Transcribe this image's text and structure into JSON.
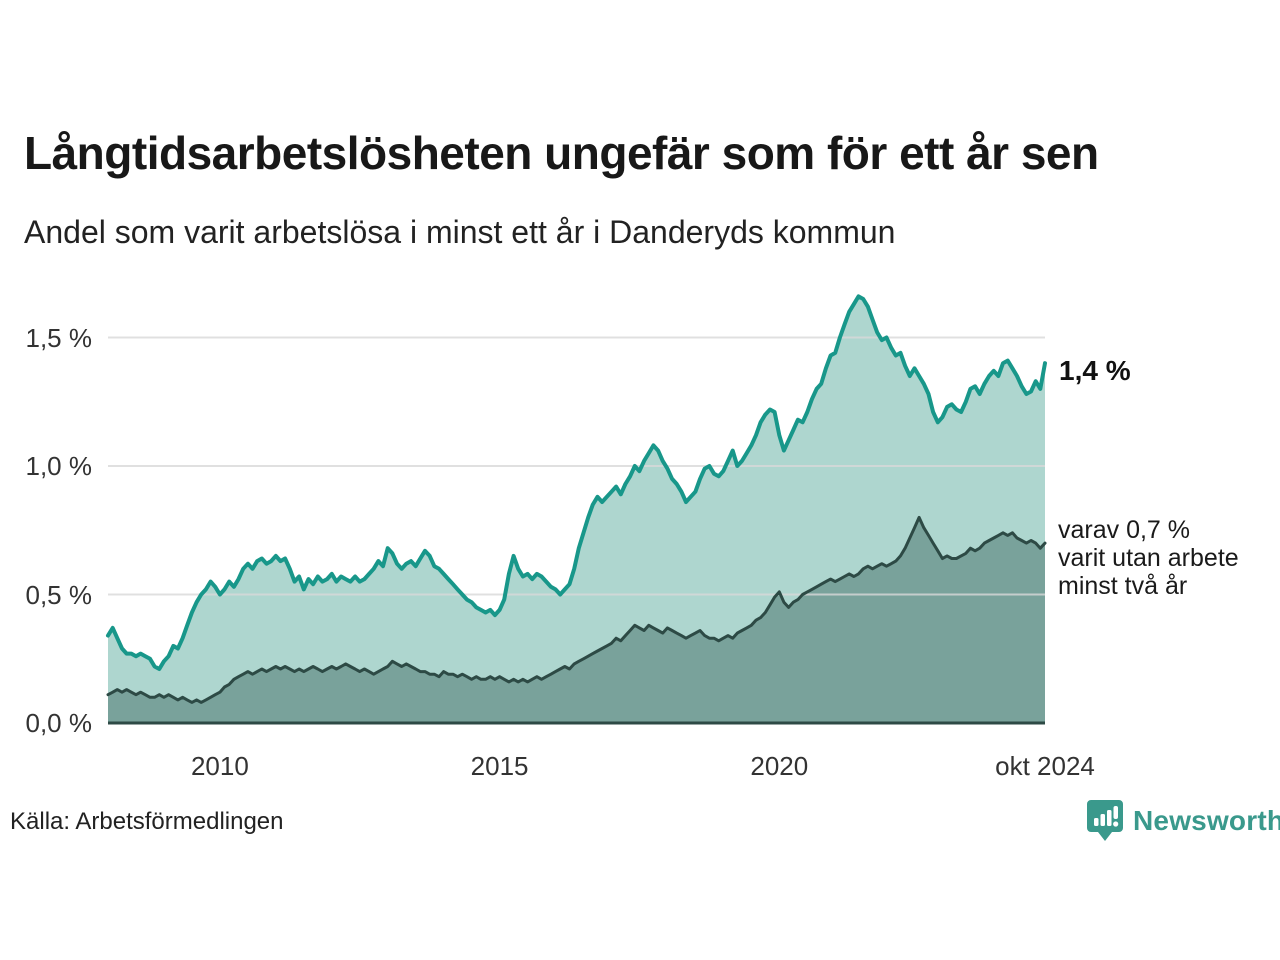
{
  "header": {
    "title": "Långtidsarbetslösheten ungefär som för ett år sen",
    "subtitle": "Andel som varit arbetslösa i minst ett år i Danderyds kommun"
  },
  "annotations": {
    "latest_value": "1,4 %",
    "varav_lines": [
      "varav 0,7 %",
      "varit utan arbete",
      "minst två år"
    ]
  },
  "footer": {
    "source": "Källa: Arbetsförmedlingen",
    "brand": "Newsworthy"
  },
  "colors": {
    "line_one_year": "#18978a",
    "fill_one_year": "#aed6cf",
    "line_two_years": "#2d4a45",
    "fill_two_years": "#79a29b",
    "gridline": "#d8d8d8",
    "axis_text": "#333333",
    "brand_teal": "#3a998c"
  },
  "chart_data": {
    "type": "area",
    "title": "Långtidsarbetslösheten ungefär som för ett år sen",
    "subtitle": "Andel som varit arbetslösa i minst ett år i Danderyds kommun",
    "unit": "%",
    "frequency": "monthly",
    "x_start": "2008-01",
    "x_end": "2024-10",
    "ylim": [
      0,
      1.69
    ],
    "grid": true,
    "legend_position": "right-annotations",
    "y_ticks": [
      {
        "label": "0,0 %",
        "value": 0.0
      },
      {
        "label": "0,5 %",
        "value": 0.5
      },
      {
        "label": "1,0 %",
        "value": 1.0
      },
      {
        "label": "1,5 %",
        "value": 1.5
      }
    ],
    "x_ticks": [
      {
        "label": "2010",
        "month_index": 24
      },
      {
        "label": "2015",
        "month_index": 84
      },
      {
        "label": "2020",
        "month_index": 144
      },
      {
        "label": "okt 2024",
        "month_index": 201
      }
    ],
    "series": [
      {
        "name": "Andel som varit arbetslösa i minst ett år",
        "latest_label": "1,4 %",
        "stroke": "#18978a",
        "fill": "#aed6cf",
        "values": [
          0.34,
          0.37,
          0.33,
          0.29,
          0.27,
          0.27,
          0.26,
          0.27,
          0.26,
          0.25,
          0.22,
          0.21,
          0.24,
          0.26,
          0.3,
          0.29,
          0.33,
          0.38,
          0.43,
          0.47,
          0.5,
          0.52,
          0.55,
          0.53,
          0.5,
          0.52,
          0.55,
          0.53,
          0.56,
          0.6,
          0.62,
          0.6,
          0.63,
          0.64,
          0.62,
          0.63,
          0.65,
          0.63,
          0.64,
          0.6,
          0.55,
          0.57,
          0.52,
          0.56,
          0.54,
          0.57,
          0.55,
          0.56,
          0.58,
          0.55,
          0.57,
          0.56,
          0.55,
          0.57,
          0.55,
          0.56,
          0.58,
          0.6,
          0.63,
          0.61,
          0.68,
          0.66,
          0.62,
          0.6,
          0.62,
          0.63,
          0.61,
          0.64,
          0.67,
          0.65,
          0.61,
          0.6,
          0.58,
          0.56,
          0.54,
          0.52,
          0.5,
          0.48,
          0.47,
          0.45,
          0.44,
          0.43,
          0.44,
          0.42,
          0.44,
          0.48,
          0.58,
          0.65,
          0.6,
          0.57,
          0.58,
          0.56,
          0.58,
          0.57,
          0.55,
          0.53,
          0.52,
          0.5,
          0.52,
          0.54,
          0.6,
          0.68,
          0.74,
          0.8,
          0.85,
          0.88,
          0.86,
          0.88,
          0.9,
          0.92,
          0.89,
          0.93,
          0.96,
          1.0,
          0.98,
          1.02,
          1.05,
          1.08,
          1.06,
          1.02,
          0.99,
          0.95,
          0.93,
          0.9,
          0.86,
          0.88,
          0.9,
          0.95,
          0.99,
          1.0,
          0.97,
          0.96,
          0.98,
          1.02,
          1.06,
          1.0,
          1.02,
          1.05,
          1.08,
          1.12,
          1.17,
          1.2,
          1.22,
          1.21,
          1.12,
          1.06,
          1.1,
          1.14,
          1.18,
          1.17,
          1.21,
          1.26,
          1.3,
          1.32,
          1.38,
          1.43,
          1.44,
          1.5,
          1.55,
          1.6,
          1.63,
          1.66,
          1.65,
          1.62,
          1.57,
          1.52,
          1.49,
          1.5,
          1.46,
          1.43,
          1.44,
          1.39,
          1.35,
          1.38,
          1.35,
          1.32,
          1.28,
          1.21,
          1.17,
          1.19,
          1.23,
          1.24,
          1.22,
          1.21,
          1.25,
          1.3,
          1.31,
          1.28,
          1.32,
          1.35,
          1.37,
          1.35,
          1.4,
          1.41,
          1.38,
          1.35,
          1.31,
          1.28,
          1.29,
          1.33,
          1.3,
          1.4
        ]
      },
      {
        "name": "varav utan arbete minst två år",
        "latest_label": "0,7 %",
        "stroke": "#2d4a45",
        "fill": "#79a29b",
        "values": [
          0.11,
          0.12,
          0.13,
          0.12,
          0.13,
          0.12,
          0.11,
          0.12,
          0.11,
          0.1,
          0.1,
          0.11,
          0.1,
          0.11,
          0.1,
          0.09,
          0.1,
          0.09,
          0.08,
          0.09,
          0.08,
          0.09,
          0.1,
          0.11,
          0.12,
          0.14,
          0.15,
          0.17,
          0.18,
          0.19,
          0.2,
          0.19,
          0.2,
          0.21,
          0.2,
          0.21,
          0.22,
          0.21,
          0.22,
          0.21,
          0.2,
          0.21,
          0.2,
          0.21,
          0.22,
          0.21,
          0.2,
          0.21,
          0.22,
          0.21,
          0.22,
          0.23,
          0.22,
          0.21,
          0.2,
          0.21,
          0.2,
          0.19,
          0.2,
          0.21,
          0.22,
          0.24,
          0.23,
          0.22,
          0.23,
          0.22,
          0.21,
          0.2,
          0.2,
          0.19,
          0.19,
          0.18,
          0.2,
          0.19,
          0.19,
          0.18,
          0.19,
          0.18,
          0.17,
          0.18,
          0.17,
          0.17,
          0.18,
          0.17,
          0.18,
          0.17,
          0.16,
          0.17,
          0.16,
          0.17,
          0.16,
          0.17,
          0.18,
          0.17,
          0.18,
          0.19,
          0.2,
          0.21,
          0.22,
          0.21,
          0.23,
          0.24,
          0.25,
          0.26,
          0.27,
          0.28,
          0.29,
          0.3,
          0.31,
          0.33,
          0.32,
          0.34,
          0.36,
          0.38,
          0.37,
          0.36,
          0.38,
          0.37,
          0.36,
          0.35,
          0.37,
          0.36,
          0.35,
          0.34,
          0.33,
          0.34,
          0.35,
          0.36,
          0.34,
          0.33,
          0.33,
          0.32,
          0.33,
          0.34,
          0.33,
          0.35,
          0.36,
          0.37,
          0.38,
          0.4,
          0.41,
          0.43,
          0.46,
          0.49,
          0.51,
          0.47,
          0.45,
          0.47,
          0.48,
          0.5,
          0.51,
          0.52,
          0.53,
          0.54,
          0.55,
          0.56,
          0.55,
          0.56,
          0.57,
          0.58,
          0.57,
          0.58,
          0.6,
          0.61,
          0.6,
          0.61,
          0.62,
          0.61,
          0.62,
          0.63,
          0.65,
          0.68,
          0.72,
          0.76,
          0.8,
          0.76,
          0.73,
          0.7,
          0.67,
          0.64,
          0.65,
          0.64,
          0.64,
          0.65,
          0.66,
          0.68,
          0.67,
          0.68,
          0.7,
          0.71,
          0.72,
          0.73,
          0.74,
          0.73,
          0.74,
          0.72,
          0.71,
          0.7,
          0.71,
          0.7,
          0.68,
          0.7
        ]
      }
    ]
  }
}
